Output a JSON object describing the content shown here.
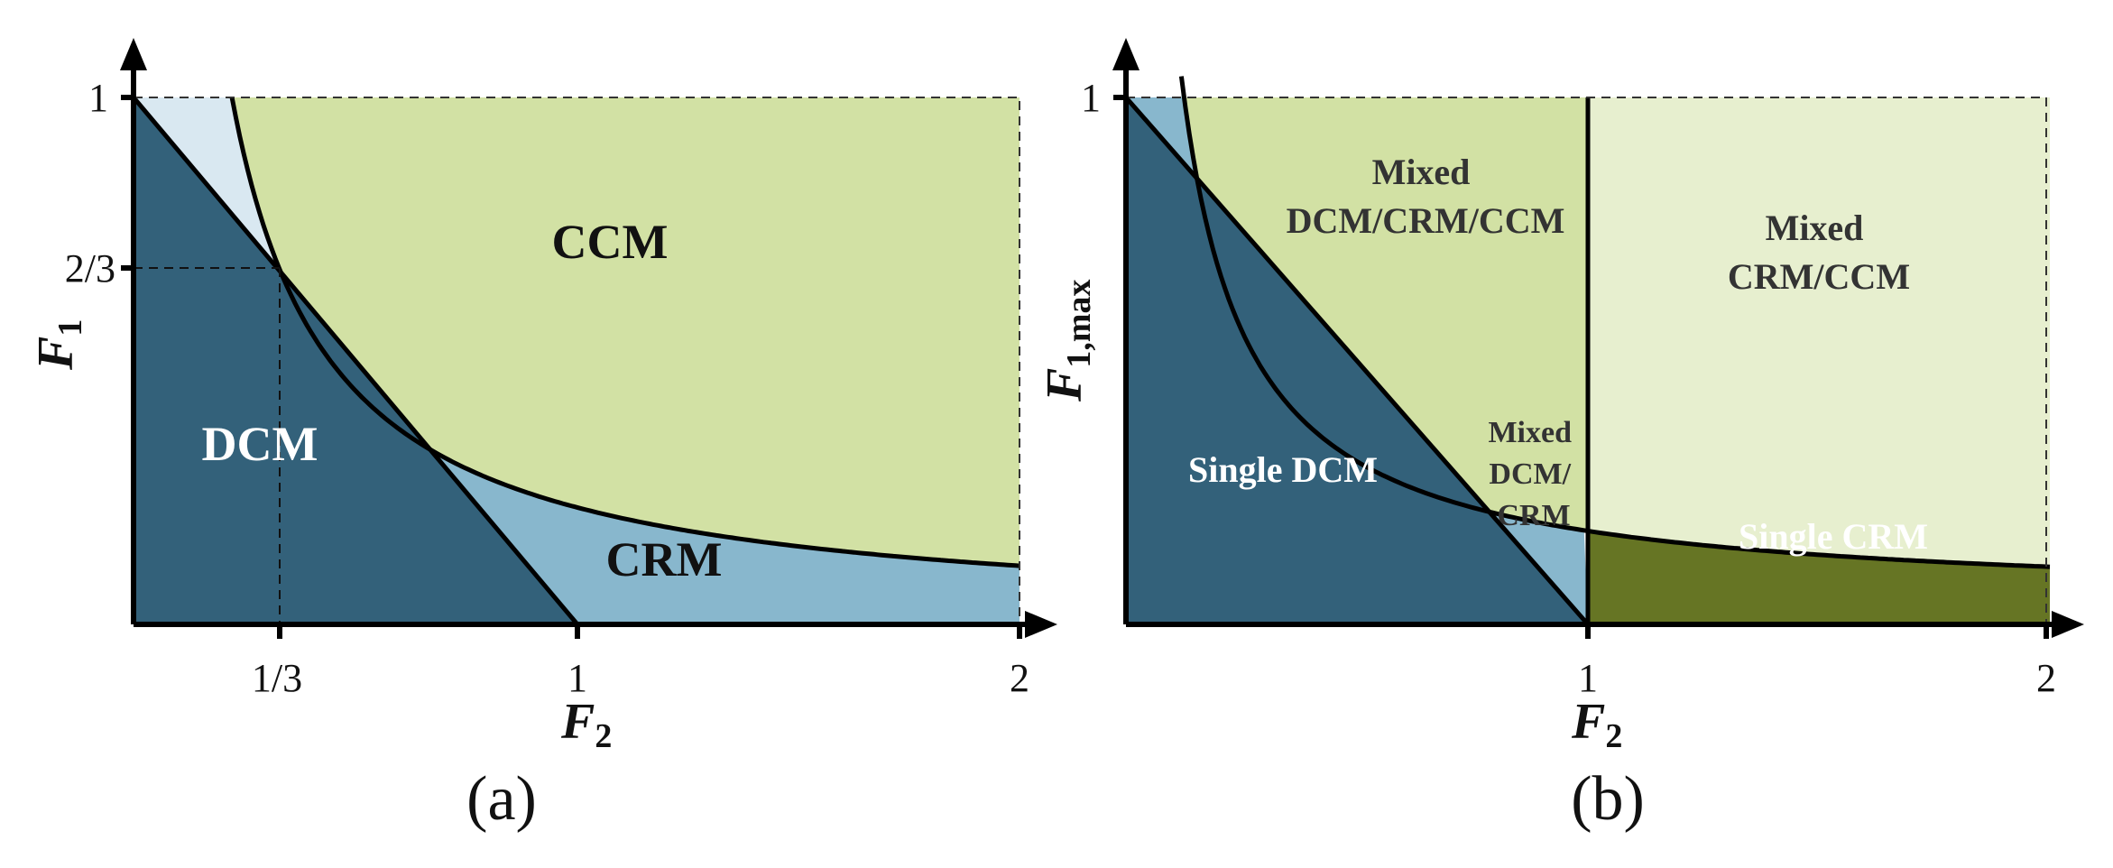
{
  "colors": {
    "dcm": "#33617a",
    "crm": "#88b7cd",
    "ccm": "#d2e1a4",
    "ccm_light": "#e7efcf",
    "pale": "#d9e8f1",
    "single_crm": "#667524",
    "line": "#000000"
  },
  "panel_a": {
    "label": "(a)",
    "x_axis": {
      "var": "F",
      "sub": "2"
    },
    "y_axis": {
      "var": "F",
      "sub": "1"
    },
    "x_ticks": [
      "1/3",
      "1",
      "2"
    ],
    "y_ticks": [
      "1",
      "2/3"
    ],
    "regions": {
      "dcm": "DCM",
      "crm": "CRM",
      "ccm": "CCM"
    }
  },
  "panel_b": {
    "label": "(b)",
    "x_axis": {
      "var": "F",
      "sub": "2"
    },
    "y_axis": {
      "var": "F",
      "sub": "1,max"
    },
    "x_ticks": [
      "1",
      "2"
    ],
    "y_ticks": [
      "1"
    ],
    "regions": {
      "single_dcm": "Single DCM",
      "single_crm": "Single CRM",
      "mixed_all": [
        "Mixed",
        "DCM/CRM/CCM"
      ],
      "mixed_crm_ccm": [
        "Mixed",
        "CRM/CCM"
      ],
      "mixed_dcm_crm": [
        "Mixed",
        "DCM/",
        "CRM"
      ]
    }
  }
}
